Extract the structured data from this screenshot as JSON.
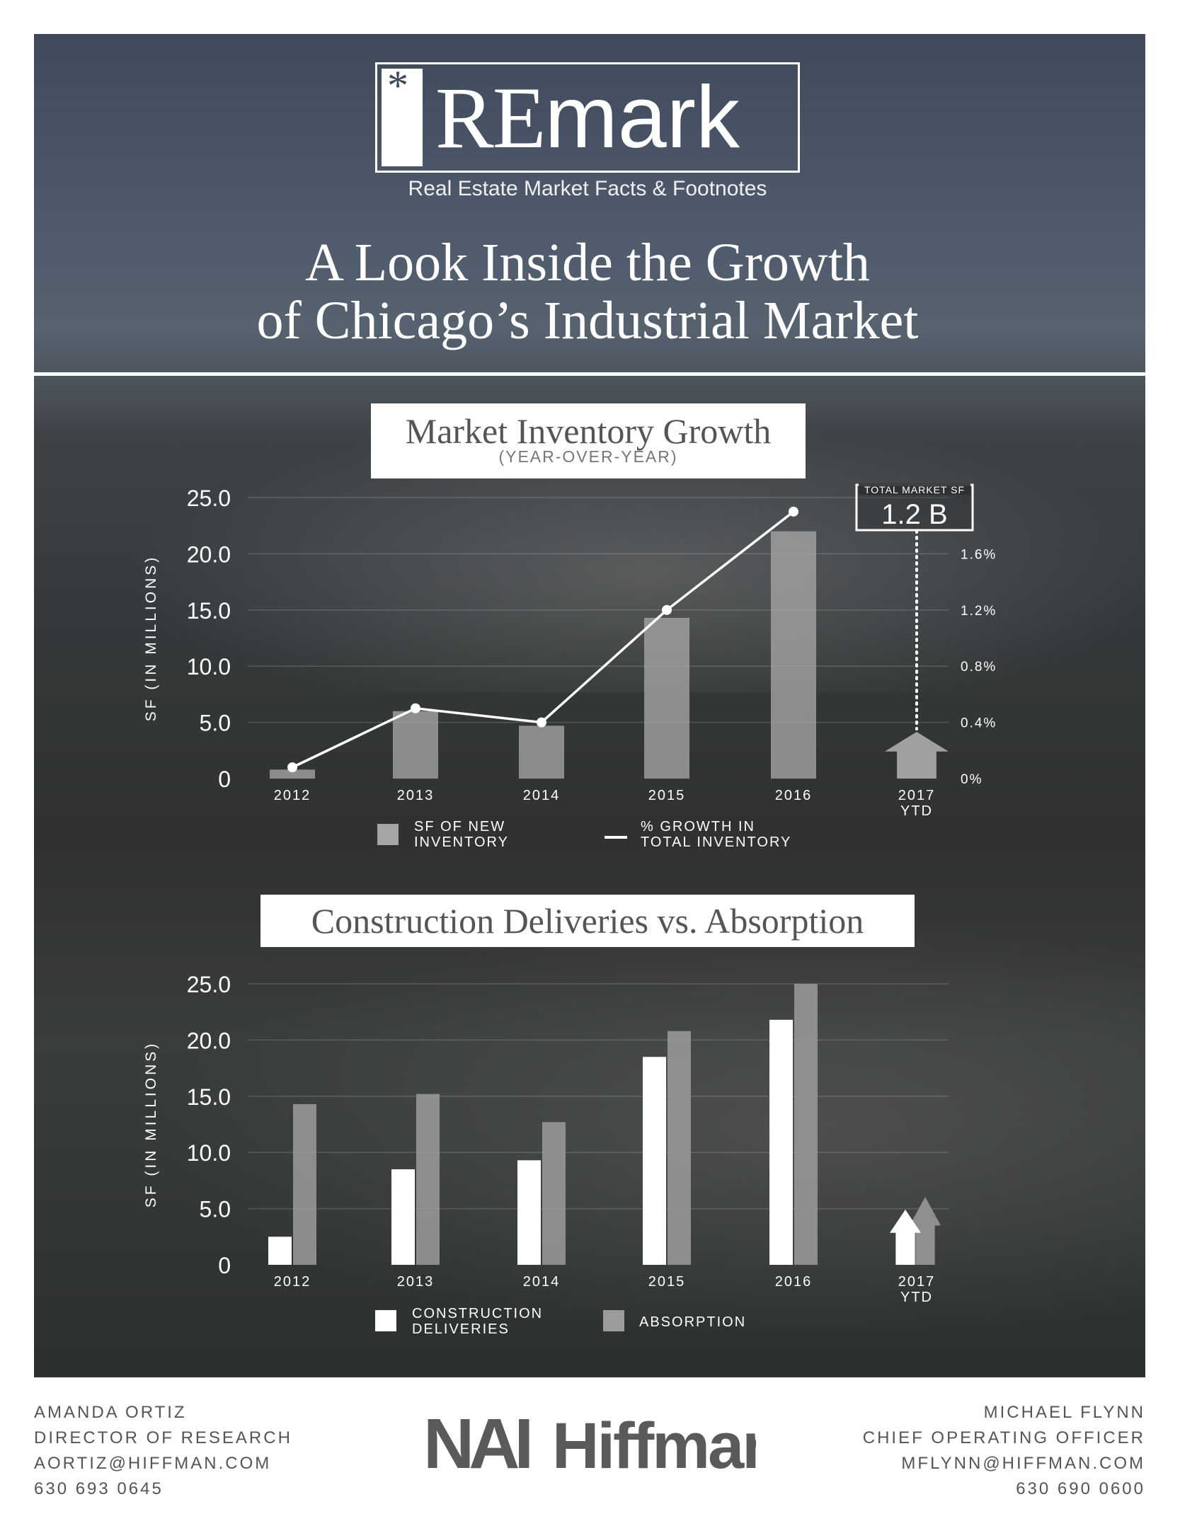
{
  "brand": {
    "logo_star": "*",
    "logo_re": "RE",
    "logo_mark": "mark",
    "tagline": "Real Estate Market Facts & Footnotes"
  },
  "title_line1": "A Look Inside the Growth",
  "title_line2": "of Chicago’s Industrial Market",
  "colors": {
    "bar_new_inventory": "#a5a5a5",
    "line_growth": "#ffffff",
    "bar_deliveries": "#ffffff",
    "bar_absorption": "#9b9b9b"
  },
  "chart_data": [
    {
      "type": "bar",
      "title": "Market Inventory Growth",
      "subtitle": "(YEAR-OVER-YEAR)",
      "ylabel": "SF (IN MILLIONS)",
      "categories": [
        "2012",
        "2013",
        "2014",
        "2015",
        "2016",
        "2017 YTD"
      ],
      "category_labels": [
        [
          "2012"
        ],
        [
          "2013"
        ],
        [
          "2014"
        ],
        [
          "2015"
        ],
        [
          "2016"
        ],
        [
          "2017",
          "YTD"
        ]
      ],
      "ylim": [
        0,
        25
      ],
      "yticks": [
        "0",
        "5.0",
        "10.0",
        "15.0",
        "20.0",
        "25.0"
      ],
      "y2ticks": [
        "0%",
        "0.4%",
        "0.8%",
        "1.2%",
        "1.6%"
      ],
      "y2lim": [
        0,
        2.0
      ],
      "series": [
        {
          "name": "SF OF NEW INVENTORY",
          "type": "bar",
          "values": [
            0.8,
            6.0,
            4.7,
            14.3,
            22.0,
            null
          ]
        },
        {
          "name": "% GROWTH IN TOTAL INVENTORY",
          "type": "line",
          "axis": "right",
          "values": [
            0.08,
            0.5,
            0.4,
            1.2,
            1.9,
            null
          ]
        }
      ],
      "legend": [
        {
          "label_lines": [
            "SF OF NEW",
            "INVENTORY"
          ],
          "kind": "square"
        },
        {
          "label_lines": [
            "% GROWTH IN",
            "TOTAL INVENTORY"
          ],
          "kind": "line"
        }
      ],
      "annotation": {
        "label": "TOTAL MARKET SF",
        "value": "1.2 B",
        "category": "2017 YTD",
        "marker": "up-arrow"
      },
      "grid": true
    },
    {
      "type": "bar",
      "title": "Construction Deliveries vs. Absorption",
      "ylabel": "SF (IN MILLIONS)",
      "categories": [
        "2012",
        "2013",
        "2014",
        "2015",
        "2016",
        "2017 YTD"
      ],
      "category_labels": [
        [
          "2012"
        ],
        [
          "2013"
        ],
        [
          "2014"
        ],
        [
          "2015"
        ],
        [
          "2016"
        ],
        [
          "2017",
          "YTD"
        ]
      ],
      "ylim": [
        0,
        25
      ],
      "yticks": [
        "0",
        "5.0",
        "10.0",
        "15.0",
        "20.0",
        "25.0"
      ],
      "series": [
        {
          "name": "CONSTRUCTION DELIVERIES",
          "values": [
            2.5,
            8.5,
            9.3,
            18.5,
            21.8,
            null
          ]
        },
        {
          "name": "ABSORPTION",
          "values": [
            14.3,
            15.2,
            12.7,
            20.8,
            25.0,
            null
          ]
        }
      ],
      "legend": [
        {
          "label_lines": [
            "CONSTRUCTION",
            "DELIVERIES"
          ]
        },
        {
          "label_lines": [
            "ABSORPTION"
          ]
        }
      ],
      "markers_2017": [
        "up-arrow",
        "up-arrow"
      ],
      "grid": true
    }
  ],
  "contacts": {
    "left": {
      "name": "AMANDA ORTIZ",
      "title": "DIRECTOR OF RESEARCH",
      "email": "AORTIZ@HIFFMAN.COM",
      "phone": "630 693 0645"
    },
    "right": {
      "name": "MICHAEL FLYNN",
      "title": "CHIEF OPERATING OFFICER",
      "email": "MFLYNN@HIFFMAN.COM",
      "phone": "630 690 0600"
    }
  },
  "footer_logo": {
    "nai": "NAI",
    "name": "Hiffman"
  }
}
